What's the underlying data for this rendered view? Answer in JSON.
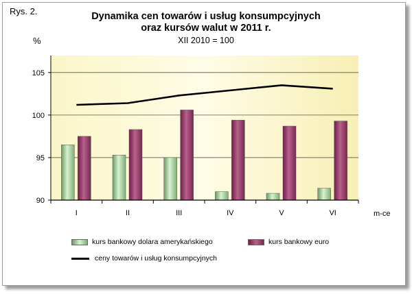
{
  "figure_label": "Rys. 2.",
  "chart_data": {
    "type": "bar",
    "title_line1": "Dynamika cen towarów i usług konsumpcyjnych",
    "title_line2": "oraz kursów walut w 2011 r.",
    "subtitle": "XII 2010 = 100",
    "ylabel": "%",
    "xlabel": "m-ce",
    "categories": [
      "I",
      "II",
      "III",
      "IV",
      "V",
      "VI"
    ],
    "ylim": [
      90,
      107
    ],
    "yticks": [
      90,
      95,
      100,
      105
    ],
    "series": [
      {
        "name": "kurs bankowy dolara amerykańskiego",
        "type": "bar",
        "color": "#a8d8a0",
        "values": [
          96.5,
          95.3,
          95.0,
          91.0,
          90.8,
          91.4
        ]
      },
      {
        "name": "kurs bankowy euro",
        "type": "bar",
        "color": "#993366",
        "values": [
          97.5,
          98.3,
          100.6,
          99.4,
          98.7,
          99.3
        ]
      },
      {
        "name": "ceny towarów i usług konsumpcyjnych",
        "type": "line",
        "color": "#000000",
        "values": [
          101.2,
          101.4,
          102.3,
          102.9,
          103.5,
          103.1
        ]
      }
    ],
    "legend_position": "bottom",
    "plot_background": "#fdfbd0"
  }
}
